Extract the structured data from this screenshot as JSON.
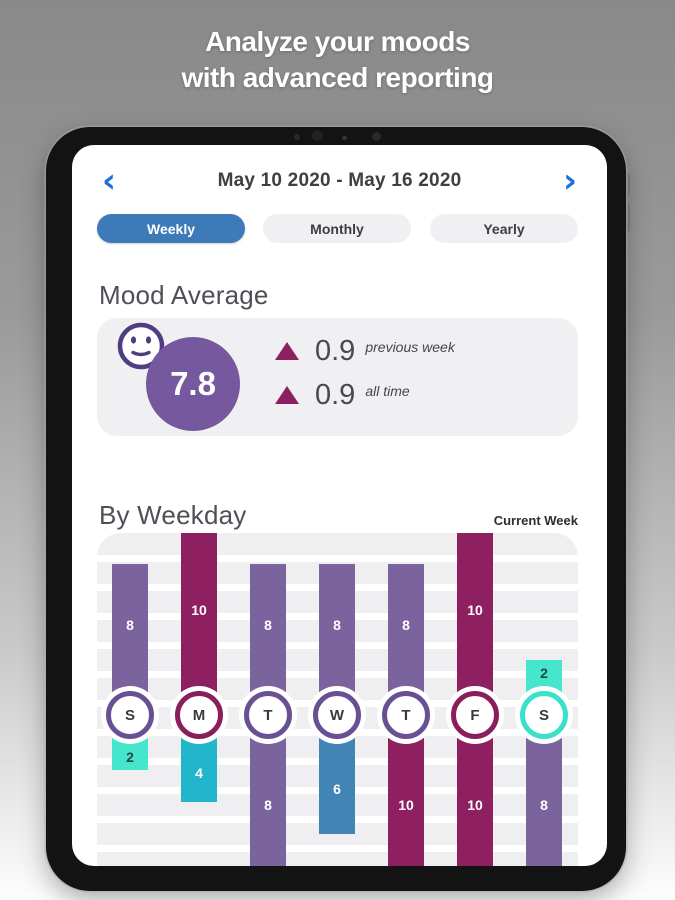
{
  "promo": {
    "line1": "Analyze your moods",
    "line2": "with advanced reporting"
  },
  "date_nav": {
    "prev_icon": "‹",
    "next_icon": "›",
    "range_label": "May 10 2020 - May 16 2020"
  },
  "tabs": [
    {
      "label": "Weekly",
      "active": true
    },
    {
      "label": "Monthly",
      "active": false
    },
    {
      "label": "Yearly",
      "active": false
    }
  ],
  "mood_average": {
    "section_title": "Mood Average",
    "score": "7.8",
    "stats": [
      {
        "direction": "up",
        "value": "0.9",
        "label": "previous week"
      },
      {
        "direction": "up",
        "value": "0.9",
        "label": "all time"
      }
    ]
  },
  "by_weekday": {
    "section_title": "By Weekday",
    "legend_label": "Current Week"
  },
  "chart_data": {
    "type": "bar",
    "title": "By Weekday",
    "legend": "Current Week",
    "orientation": "diverging-vertical",
    "categories": [
      "S",
      "M",
      "T",
      "W",
      "T",
      "F",
      "S"
    ],
    "series": [
      {
        "name": "upper",
        "values": [
          8,
          10,
          8,
          8,
          8,
          10,
          2
        ]
      },
      {
        "name": "lower",
        "values": [
          2,
          4,
          8,
          6,
          10,
          10,
          8
        ]
      }
    ],
    "value_range": [
      0,
      10
    ],
    "grid": true,
    "upper_colors": [
      "purple",
      "magenta",
      "purple",
      "purple",
      "purple",
      "magenta",
      "teal"
    ],
    "lower_colors": [
      "teal",
      "cyan",
      "purple",
      "blue",
      "magenta",
      "magenta",
      "purple"
    ],
    "ring_colors": [
      "purple",
      "magenta",
      "purple",
      "purple",
      "purple",
      "magenta",
      "teal"
    ],
    "palette": {
      "purple": "#7b639e",
      "magenta": "#8e2061",
      "teal": "#45e6cd",
      "cyan": "#22b5cb",
      "blue": "#4285b4"
    },
    "ring_palette": {
      "purple": "#685093",
      "magenta": "#8a1d5b",
      "teal": "#3ae0ca"
    },
    "dark_label_on": [
      "teal"
    ]
  },
  "colors": {
    "active_tab_blue": "#3d7ab8",
    "chevron_blue": "#1b72d8",
    "score_circle_purple": "#75589d",
    "stat_triangle_magenta": "#8a2060",
    "card_gray": "#f0f0f2"
  }
}
